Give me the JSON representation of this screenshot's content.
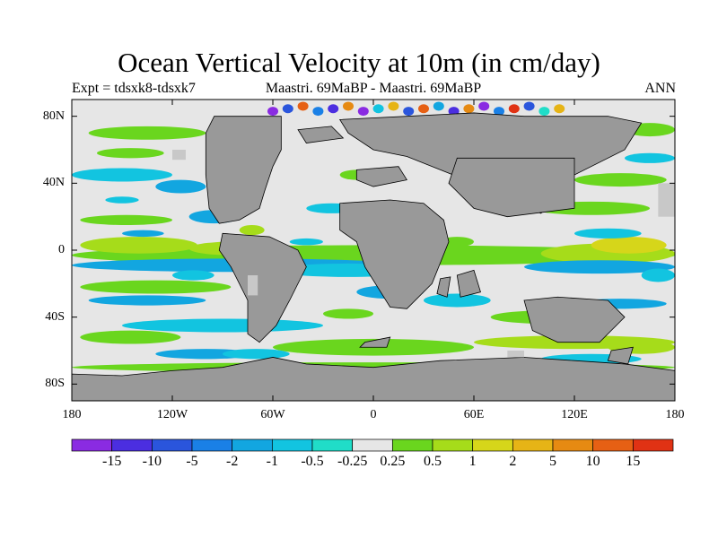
{
  "title": "Ocean Vertical Velocity at 10m (in cm/day)",
  "subtitle_left": "Expt = tdsxk8-tdsxk7",
  "subtitle_center": "Maastri.  69MaBP - Maastri.  69MaBP",
  "subtitle_right": "ANN",
  "colors": {
    "land": "#999999",
    "ocean_neutral": "#e6e6e6",
    "missing": "#c8c8c8",
    "scale": [
      "#8a2be2",
      "#4b2ee0",
      "#2a55dc",
      "#1a80e6",
      "#12a6e0",
      "#12c4e0",
      "#20ddc8",
      "#e6e6e6",
      "#6ad61e",
      "#a6dc1a",
      "#d6d61a",
      "#e6b416",
      "#e68a12",
      "#e66014",
      "#e03214"
    ]
  },
  "map": {
    "projection": "cylindrical equidistant",
    "lon_range": [
      -180,
      180
    ],
    "lat_range": [
      -90,
      90
    ],
    "lat_ticks": [
      {
        "value": 80,
        "label": "80N"
      },
      {
        "value": 40,
        "label": "40N"
      },
      {
        "value": 0,
        "label": "0"
      },
      {
        "value": -40,
        "label": "40S"
      },
      {
        "value": -80,
        "label": "80S"
      }
    ],
    "lon_ticks": [
      {
        "value": -180,
        "label": "180"
      },
      {
        "value": -120,
        "label": "120W"
      },
      {
        "value": -60,
        "label": "60W"
      },
      {
        "value": 0,
        "label": "0"
      },
      {
        "value": 60,
        "label": "60E"
      },
      {
        "value": 120,
        "label": "120E"
      },
      {
        "value": 180,
        "label": "180"
      }
    ]
  },
  "colorbar": {
    "labels": [
      "-15",
      "-10",
      "-5",
      "-2",
      "-1",
      "-0.5",
      "-0.25",
      "0.25",
      "0.5",
      "1",
      "2",
      "5",
      "10",
      "15"
    ]
  }
}
